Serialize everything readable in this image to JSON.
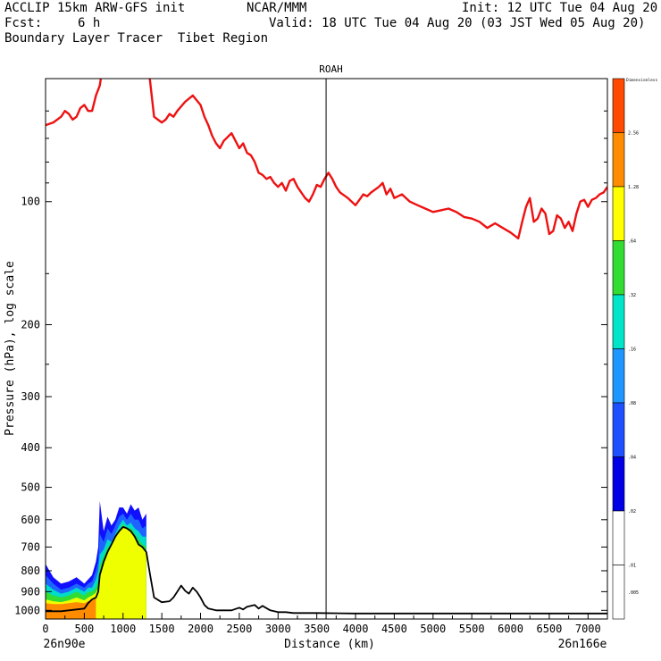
{
  "header": {
    "model": "ACCLIP 15km ARW-GFS init",
    "org": "NCAR/MMM",
    "init": "Init: 12 UTC Tue 04 Aug 20",
    "fcst_label": "Fcst:",
    "fcst_value": "6 h",
    "valid": "Valid: 18 UTC Tue 04 Aug 20 (03 JST Wed 05 Aug 20)",
    "field": "Boundary Layer Tracer  Tibet Region"
  },
  "chart_data": {
    "type": "line",
    "title": "ROAH",
    "xlabel": "Distance (km)",
    "ylabel": "Pressure (hPa), log scale",
    "x_start_label": "26n90e",
    "x_end_label": "26n166e",
    "xlim": [
      0,
      7250
    ],
    "ylim": [
      1050,
      50
    ],
    "x_ticks": [
      0,
      500,
      1000,
      1500,
      2000,
      2500,
      3000,
      3500,
      4000,
      4500,
      5000,
      5500,
      6000,
      6500,
      7000
    ],
    "y_ticks": [
      100,
      200,
      300,
      400,
      500,
      600,
      700,
      800,
      900,
      1000
    ],
    "marker_line_x": 3620,
    "colorbar": {
      "top_label": "Dimensionless",
      "labels": [
        "2.56",
        "1.28",
        ".64",
        ".32",
        ".16",
        ".08",
        ".04",
        ".02",
        ".01",
        ".005"
      ],
      "colors": [
        "#ff4a00",
        "#ff8c00",
        "#ffff00",
        "#32dc32",
        "#00e4c8",
        "#1e96ff",
        "#1e50ff",
        "#0000e6",
        "#ffffff",
        "#ffffff"
      ]
    },
    "series": [
      {
        "name": "Tropopause",
        "color": "#ee1111",
        "x": [
          0,
          100,
          200,
          250,
          300,
          350,
          400,
          450,
          500,
          550,
          600,
          650,
          700,
          750,
          780,
          820,
          850,
          900,
          950,
          1000,
          1050,
          1100,
          1150,
          1200,
          1250,
          1300,
          1400,
          1500,
          1550,
          1600,
          1650,
          1700,
          1800,
          1900,
          2000,
          2050,
          2100,
          2150,
          2200,
          2250,
          2300,
          2400,
          2500,
          2550,
          2600,
          2650,
          2700,
          2750,
          2800,
          2850,
          2900,
          2950,
          3000,
          3050,
          3100,
          3150,
          3200,
          3250,
          3300,
          3350,
          3400,
          3450,
          3500,
          3550,
          3600,
          3650,
          3700,
          3750,
          3800,
          3900,
          4000,
          4050,
          4100,
          4150,
          4200,
          4300,
          4350,
          4400,
          4450,
          4500,
          4600,
          4700,
          4800,
          4900,
          5000,
          5100,
          5200,
          5300,
          5400,
          5500,
          5600,
          5700,
          5800,
          5900,
          6000,
          6100,
          6150,
          6200,
          6250,
          6300,
          6350,
          6400,
          6450,
          6500,
          6550,
          6600,
          6650,
          6700,
          6750,
          6800,
          6850,
          6900,
          6950,
          7000,
          7050,
          7100,
          7150,
          7200,
          7250
        ],
        "y": [
          65,
          64,
          62,
          60,
          61,
          63,
          62,
          59,
          58,
          60,
          60,
          55,
          52,
          45,
          44,
          40,
          38,
          36,
          35,
          36,
          38,
          39,
          40,
          41,
          37,
          42,
          62,
          64,
          63,
          61,
          62,
          60,
          57,
          55,
          58,
          62,
          65,
          69,
          72,
          74,
          71,
          68,
          74,
          72,
          76,
          77,
          80,
          85,
          86,
          88,
          87,
          90,
          92,
          90,
          94,
          89,
          88,
          92,
          95,
          98,
          100,
          96,
          91,
          92,
          88,
          85,
          88,
          92,
          95,
          98,
          102,
          99,
          96,
          97,
          95,
          92,
          90,
          96,
          93,
          98,
          96,
          100,
          102,
          104,
          106,
          105,
          104,
          106,
          109,
          110,
          112,
          116,
          113,
          116,
          119,
          123,
          112,
          103,
          98,
          112,
          110,
          104,
          107,
          120,
          118,
          108,
          110,
          116,
          112,
          118,
          107,
          100,
          99,
          103,
          99,
          98,
          96,
          95,
          92
        ]
      },
      {
        "name": "Terrain",
        "color": "#000000",
        "x": [
          0,
          100,
          200,
          300,
          400,
          500,
          550,
          600,
          650,
          680,
          700,
          750,
          800,
          850,
          900,
          950,
          1000,
          1050,
          1100,
          1150,
          1200,
          1250,
          1300,
          1350,
          1400,
          1500,
          1600,
          1650,
          1700,
          1750,
          1800,
          1850,
          1900,
          1950,
          2000,
          2050,
          2100,
          2200,
          2300,
          2400,
          2500,
          2550,
          2600,
          2700,
          2750,
          2800,
          2900,
          3000,
          3100,
          3200,
          3300,
          3500,
          4000,
          4500,
          5000,
          5500,
          6000,
          6500,
          7000,
          7250
        ],
        "y": [
          1005,
          1005,
          1005,
          1000,
          995,
          990,
          960,
          940,
          930,
          900,
          820,
          760,
          720,
          690,
          660,
          640,
          625,
          630,
          640,
          660,
          690,
          700,
          720,
          820,
          930,
          955,
          950,
          930,
          900,
          870,
          895,
          910,
          880,
          900,
          930,
          970,
          990,
          1000,
          1000,
          1000,
          985,
          995,
          980,
          970,
          990,
          975,
          1000,
          1010,
          1010,
          1015,
          1015,
          1015,
          1018,
          1018,
          1018,
          1018,
          1018,
          1018,
          1018,
          1018
        ]
      }
    ],
    "tracer_bands": [
      {
        "level": ".01",
        "color": "#1010ff",
        "x": [
          0,
          100,
          200,
          300,
          400,
          500,
          550,
          600,
          650,
          680,
          700,
          750,
          800,
          850,
          900,
          950,
          1000,
          1050,
          1100,
          1150,
          1200,
          1250,
          1300
        ],
        "y": [
          770,
          830,
          860,
          850,
          830,
          860,
          840,
          820,
          760,
          700,
          540,
          640,
          590,
          620,
          600,
          560,
          560,
          580,
          550,
          570,
          560,
          600,
          580
        ]
      },
      {
        "level": ".04",
        "color": "#1e64ff",
        "x": [
          0,
          100,
          200,
          300,
          400,
          500,
          550,
          600,
          650,
          680,
          700,
          750,
          800,
          850,
          900,
          950,
          1000,
          1050,
          1100,
          1150,
          1200,
          1250,
          1300
        ],
        "y": [
          820,
          860,
          890,
          880,
          860,
          880,
          860,
          850,
          800,
          760,
          650,
          680,
          630,
          650,
          620,
          590,
          580,
          600,
          580,
          600,
          600,
          630,
          620
        ]
      },
      {
        "level": ".08",
        "color": "#00dcc8",
        "x": [
          0,
          100,
          200,
          300,
          400,
          500,
          550,
          600,
          650,
          680,
          700,
          750,
          800,
          850,
          900,
          950,
          1000,
          1050,
          1100,
          1150,
          1200,
          1250,
          1300
        ],
        "y": [
          860,
          890,
          910,
          900,
          880,
          900,
          880,
          880,
          840,
          800,
          730,
          710,
          670,
          680,
          650,
          620,
          600,
          620,
          610,
          630,
          640,
          660,
          660
        ]
      },
      {
        "level": ".16",
        "color": "#32dc32",
        "x": [
          0,
          100,
          200,
          300,
          400,
          500,
          550,
          600,
          650,
          680,
          700,
          750,
          800,
          850,
          900,
          950,
          1000,
          1050,
          1100,
          1150,
          1200,
          1250,
          1300
        ],
        "y": [
          900,
          920,
          930,
          920,
          900,
          920,
          900,
          900,
          880,
          850,
          780,
          740,
          700,
          700,
          670,
          640,
          615,
          630,
          630,
          650,
          670,
          690,
          700
        ]
      },
      {
        "level": ".32",
        "color": "#f0ff00",
        "x": [
          0,
          100,
          200,
          300,
          400,
          500,
          550,
          600,
          650,
          680,
          700,
          750,
          800,
          850,
          900,
          950,
          1000,
          1050,
          1100,
          1150,
          1200,
          1250,
          1300
        ],
        "y": [
          940,
          950,
          955,
          945,
          930,
          945,
          930,
          920,
          905,
          880,
          810,
          760,
          715,
          690,
          660,
          640,
          620,
          630,
          640,
          660,
          690,
          700,
          720
        ]
      },
      {
        "level": ".64",
        "color": "#ff8c00",
        "x": [
          0,
          100,
          200,
          300,
          400,
          500,
          550,
          600,
          650
        ],
        "y": [
          960,
          965,
          965,
          960,
          955,
          960,
          950,
          945,
          935
        ]
      }
    ]
  }
}
